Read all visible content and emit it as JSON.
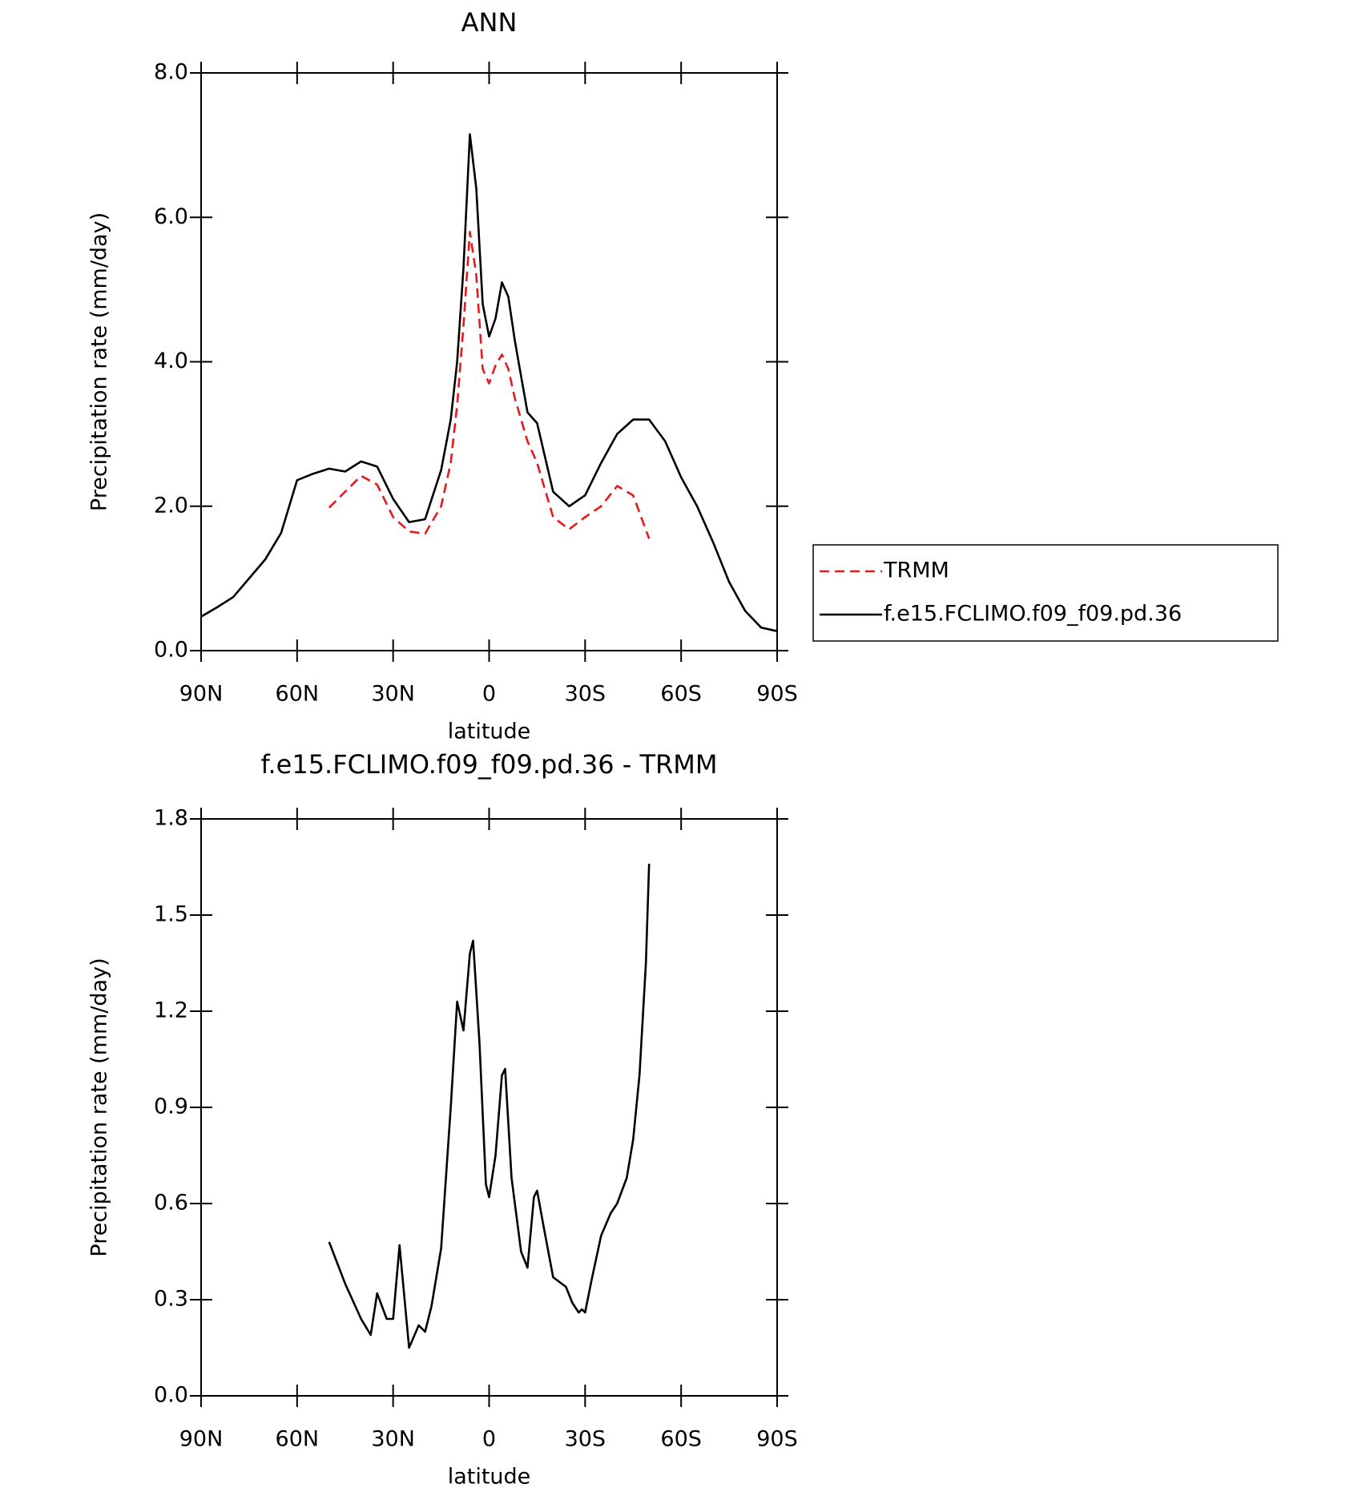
{
  "chart_data": [
    {
      "type": "line",
      "title": "ANN",
      "xlabel": "latitude",
      "ylabel": "Precipitation rate (mm/day)",
      "x": [
        90,
        85,
        80,
        75,
        70,
        65,
        60,
        55,
        50,
        45,
        40,
        35,
        30,
        25,
        20,
        15,
        12,
        10,
        8,
        6,
        4,
        2,
        0,
        -2,
        -4,
        -6,
        -8,
        -10,
        -12,
        -15,
        -20,
        -25,
        -30,
        -35,
        -40,
        -45,
        -50,
        -55,
        -60,
        -65,
        -70,
        -75,
        -80,
        -85,
        -90
      ],
      "series": [
        {
          "name": "TRMM",
          "color": "#e41a1c",
          "dash": true,
          "values": [
            null,
            null,
            null,
            null,
            null,
            null,
            null,
            null,
            1.98,
            2.2,
            2.42,
            2.3,
            1.85,
            1.65,
            1.62,
            2.0,
            2.6,
            3.4,
            4.5,
            5.8,
            5.2,
            3.9,
            3.7,
            3.95,
            4.1,
            3.9,
            3.5,
            3.2,
            2.9,
            2.6,
            1.85,
            1.68,
            1.85,
            2.0,
            2.28,
            2.15,
            1.55,
            null,
            null,
            null,
            null,
            null,
            null,
            null,
            null
          ]
        },
        {
          "name": "f.e15.FCLIMO.f09_f09.pd.36",
          "color": "#000000",
          "dash": false,
          "values": [
            0.47,
            0.6,
            0.74,
            1.0,
            1.26,
            1.63,
            2.36,
            2.45,
            2.52,
            2.48,
            2.62,
            2.55,
            2.1,
            1.78,
            1.82,
            2.5,
            3.2,
            4.0,
            5.3,
            7.15,
            6.4,
            4.8,
            4.35,
            4.6,
            5.1,
            4.9,
            4.3,
            3.8,
            3.3,
            3.15,
            2.2,
            2.0,
            2.15,
            2.6,
            3.0,
            3.2,
            3.2,
            2.9,
            2.4,
            2.0,
            1.5,
            0.95,
            0.55,
            0.32,
            0.27
          ]
        }
      ],
      "xlim": [
        90,
        -90
      ],
      "xticks": [
        {
          "value": 90,
          "label": "90N"
        },
        {
          "value": 60,
          "label": "60N"
        },
        {
          "value": 30,
          "label": "30N"
        },
        0,
        {
          "value": -30,
          "label": "30S"
        },
        {
          "value": -60,
          "label": "60S"
        },
        {
          "value": -90,
          "label": "90S"
        }
      ],
      "ylim": [
        0,
        8
      ],
      "yticks": [
        {
          "value": 0,
          "label": "0.0"
        },
        {
          "value": 2,
          "label": "2.0"
        },
        {
          "value": 4,
          "label": "4.0"
        },
        {
          "value": 6,
          "label": "6.0"
        },
        {
          "value": 8,
          "label": "8.0"
        }
      ],
      "legend": "right"
    },
    {
      "type": "line",
      "title": "f.e15.FCLIMO.f09_f09.pd.36 - TRMM",
      "xlabel": "latitude",
      "ylabel": "Precipitation rate (mm/day)",
      "x": [
        50,
        45,
        40,
        37,
        35,
        32,
        30,
        28,
        25,
        22,
        20,
        18,
        15,
        12,
        10,
        8,
        6,
        5,
        3,
        1,
        0,
        -2,
        -4,
        -5,
        -7,
        -10,
        -12,
        -14,
        -15,
        -17,
        -20,
        -24,
        -26,
        -28,
        -29,
        -30,
        -32,
        -35,
        -38,
        -40,
        -43,
        -45,
        -47,
        -49,
        -50
      ],
      "values": [
        0.48,
        0.35,
        0.24,
        0.19,
        0.32,
        0.24,
        0.24,
        0.47,
        0.15,
        0.22,
        0.2,
        0.28,
        0.46,
        0.9,
        1.23,
        1.14,
        1.38,
        1.42,
        1.1,
        0.66,
        0.62,
        0.75,
        1.0,
        1.02,
        0.68,
        0.45,
        0.4,
        0.62,
        0.64,
        0.53,
        0.37,
        0.34,
        0.29,
        0.26,
        0.27,
        0.26,
        0.36,
        0.5,
        0.57,
        0.6,
        0.68,
        0.8,
        1.0,
        1.35,
        1.66
      ],
      "color": "#000000",
      "xlim": [
        90,
        -90
      ],
      "xticks": [
        {
          "value": 90,
          "label": "90N"
        },
        {
          "value": 60,
          "label": "60N"
        },
        {
          "value": 30,
          "label": "30N"
        },
        0,
        {
          "value": -30,
          "label": "30S"
        },
        {
          "value": -60,
          "label": "60S"
        },
        {
          "value": -90,
          "label": "90S"
        }
      ],
      "ylim": [
        0,
        1.8
      ],
      "yticks": [
        {
          "value": 0,
          "label": "0.0"
        },
        0.3,
        0.6,
        0.9,
        1.2,
        1.5,
        1.8
      ]
    }
  ]
}
